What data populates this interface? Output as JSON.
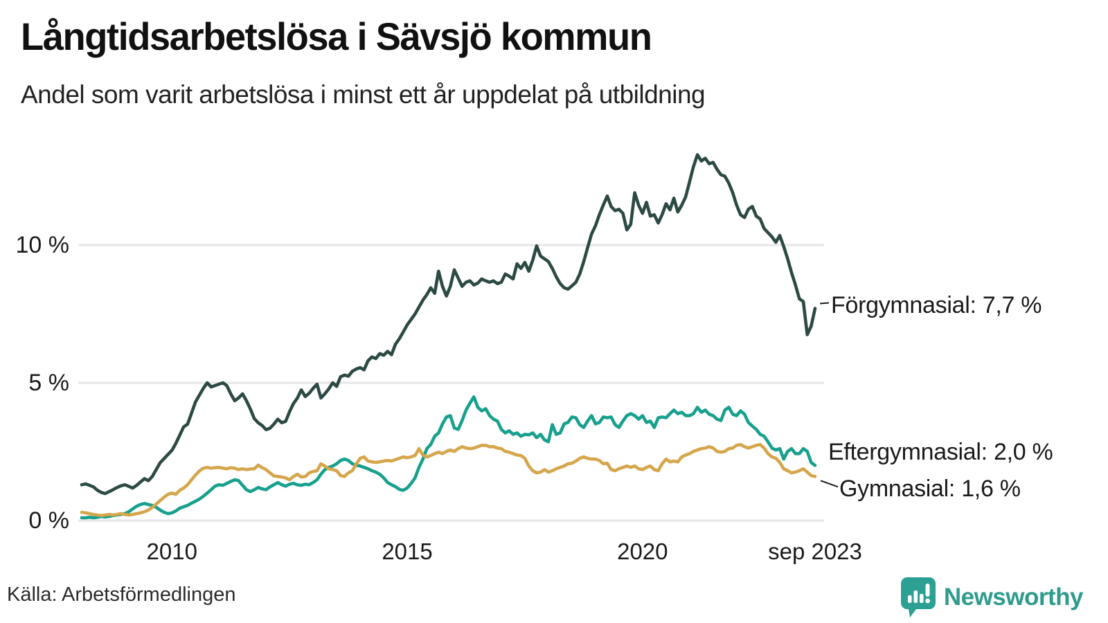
{
  "title": "Långtidsarbetslösa i Sävsjö kommun",
  "subtitle": "Andel som varit arbetslösa i minst ett år uppdelat på utbildning",
  "source": "Källa: Arbetsförmedlingen",
  "brand": {
    "name": "Newsworthy",
    "color": "#2E9B8D",
    "icon_color": "#2BA093",
    "icon": "speech-bubble-bar-chart-exclamation"
  },
  "colors": {
    "grid": "#E6E6E8",
    "text": "#1a1a1a"
  },
  "chart_data": {
    "type": "line",
    "title": "Långtidsarbetslösa i Sävsjö kommun",
    "subtitle": "Andel som varit arbetslösa i minst ett år uppdelat på utbildning",
    "xlabel": "",
    "ylabel": "",
    "x_start": "2008-02",
    "x_end": "2023-09",
    "x_interval": "monthly",
    "ylim": [
      0,
      13.8
    ],
    "grid": "horizontal",
    "legend_position": "end-of-line-labels",
    "y_ticks": [
      {
        "value": 0,
        "label": "0 %"
      },
      {
        "value": 5,
        "label": "5 %"
      },
      {
        "value": 10,
        "label": "10 %"
      }
    ],
    "x_ticks": [
      {
        "month_index": 23,
        "label": "2010"
      },
      {
        "month_index": 83,
        "label": "2015"
      },
      {
        "month_index": 143,
        "label": "2020"
      },
      {
        "month_index": 187,
        "label": "sep 2023"
      }
    ],
    "series": [
      {
        "name": "Förgymnasial",
        "end_label": "Förgymnasial: 7,7 %",
        "end_value_label": "7,7 %",
        "color": "#2C4A44",
        "values": [
          1.3,
          1.33,
          1.28,
          1.22,
          1.1,
          1.02,
          0.98,
          1.05,
          1.12,
          1.2,
          1.26,
          1.3,
          1.24,
          1.18,
          1.28,
          1.4,
          1.52,
          1.45,
          1.6,
          1.85,
          2.1,
          2.25,
          2.4,
          2.55,
          2.8,
          3.1,
          3.4,
          3.5,
          3.9,
          4.3,
          4.55,
          4.8,
          5.0,
          4.85,
          4.9,
          4.95,
          5.0,
          4.9,
          4.6,
          4.35,
          4.45,
          4.6,
          4.35,
          4.05,
          3.7,
          3.55,
          3.45,
          3.3,
          3.35,
          3.5,
          3.68,
          3.55,
          3.6,
          3.95,
          4.25,
          4.45,
          4.74,
          4.5,
          4.62,
          4.8,
          4.95,
          4.45,
          4.6,
          4.78,
          5.0,
          4.87,
          5.22,
          5.28,
          5.24,
          5.42,
          5.5,
          5.55,
          5.47,
          5.8,
          5.94,
          5.88,
          6.06,
          6.0,
          6.14,
          6.02,
          6.4,
          6.6,
          6.85,
          7.1,
          7.3,
          7.5,
          7.75,
          8.0,
          8.2,
          8.45,
          8.25,
          9.05,
          8.5,
          8.15,
          8.5,
          9.1,
          8.8,
          8.5,
          8.65,
          8.7,
          8.55,
          8.62,
          8.77,
          8.7,
          8.65,
          8.7,
          8.6,
          8.65,
          8.95,
          8.87,
          8.77,
          9.32,
          9.15,
          9.37,
          9.05,
          9.45,
          9.97,
          9.6,
          9.5,
          9.4,
          9.15,
          8.85,
          8.6,
          8.45,
          8.4,
          8.52,
          8.65,
          8.95,
          9.4,
          9.9,
          10.4,
          10.7,
          11.1,
          11.45,
          11.78,
          11.4,
          11.25,
          11.3,
          11.15,
          10.55,
          10.75,
          11.9,
          11.45,
          11.15,
          11.55,
          11.05,
          11.1,
          10.8,
          11.1,
          11.5,
          11.28,
          11.7,
          11.2,
          11.45,
          11.75,
          12.3,
          12.85,
          13.28,
          13.05,
          13.15,
          12.95,
          13.0,
          12.75,
          12.55,
          12.5,
          12.25,
          11.9,
          11.45,
          11.1,
          11.0,
          11.3,
          11.4,
          11.05,
          10.95,
          10.6,
          10.45,
          10.3,
          10.1,
          10.35,
          9.95,
          9.5,
          9.0,
          8.55,
          8.05,
          7.95,
          6.75,
          7.05,
          7.7
        ]
      },
      {
        "name": "Eftergymnasial",
        "end_label": "Eftergymnasial: 2,0 %",
        "end_value_label": "2,0 %",
        "color": "#17A08D",
        "values": [
          0.1,
          0.1,
          0.12,
          0.1,
          0.12,
          0.15,
          0.13,
          0.15,
          0.18,
          0.2,
          0.22,
          0.25,
          0.32,
          0.42,
          0.52,
          0.58,
          0.62,
          0.58,
          0.55,
          0.48,
          0.38,
          0.3,
          0.25,
          0.28,
          0.35,
          0.45,
          0.5,
          0.55,
          0.63,
          0.7,
          0.78,
          0.88,
          1.0,
          1.12,
          1.25,
          1.3,
          1.28,
          1.35,
          1.42,
          1.48,
          1.45,
          1.28,
          1.12,
          1.05,
          1.12,
          1.2,
          1.15,
          1.12,
          1.22,
          1.3,
          1.38,
          1.3,
          1.25,
          1.32,
          1.35,
          1.3,
          1.28,
          1.32,
          1.3,
          1.38,
          1.48,
          1.68,
          1.85,
          1.93,
          1.98,
          2.06,
          2.18,
          2.23,
          2.18,
          2.06,
          2.01,
          1.98,
          1.93,
          1.88,
          1.81,
          1.76,
          1.68,
          1.55,
          1.38,
          1.3,
          1.23,
          1.13,
          1.1,
          1.18,
          1.35,
          1.55,
          1.93,
          2.23,
          2.61,
          2.76,
          3.06,
          3.18,
          3.51,
          3.76,
          3.81,
          3.36,
          3.31,
          3.63,
          4.01,
          4.26,
          4.49,
          4.11,
          3.98,
          4.06,
          3.81,
          3.68,
          3.61,
          3.31,
          3.18,
          3.26,
          3.13,
          3.18,
          3.06,
          3.13,
          3.11,
          3.18,
          3.01,
          3.13,
          2.93,
          2.86,
          3.48,
          3.13,
          3.18,
          3.51,
          3.56,
          3.76,
          3.73,
          3.48,
          3.38,
          3.61,
          3.81,
          3.51,
          3.56,
          3.76,
          3.73,
          3.76,
          3.48,
          3.38,
          3.61,
          3.81,
          3.88,
          3.81,
          3.68,
          3.81,
          3.56,
          3.61,
          3.38,
          3.73,
          3.76,
          3.73,
          3.88,
          4.01,
          3.88,
          3.93,
          3.81,
          3.81,
          3.88,
          4.11,
          3.93,
          4.01,
          3.86,
          3.81,
          3.68,
          3.63,
          4.01,
          4.11,
          3.86,
          3.81,
          3.98,
          3.86,
          3.56,
          3.43,
          3.31,
          3.13,
          3.06,
          2.86,
          2.63,
          2.56,
          2.61,
          2.23,
          2.51,
          2.61,
          2.43,
          2.43,
          2.61,
          2.51,
          2.11,
          2.0
        ]
      },
      {
        "name": "Gymnasial",
        "end_label": "Gymnasial: 1,6 %",
        "end_value_label": "1,6 %",
        "color": "#D5A64B",
        "values": [
          0.3,
          0.28,
          0.25,
          0.22,
          0.2,
          0.18,
          0.2,
          0.22,
          0.2,
          0.22,
          0.25,
          0.22,
          0.2,
          0.22,
          0.25,
          0.28,
          0.32,
          0.38,
          0.48,
          0.6,
          0.72,
          0.85,
          0.95,
          1.0,
          0.95,
          1.1,
          1.18,
          1.3,
          1.48,
          1.65,
          1.8,
          1.9,
          1.93,
          1.9,
          1.92,
          1.93,
          1.9,
          1.88,
          1.92,
          1.9,
          1.85,
          1.88,
          1.85,
          1.87,
          1.88,
          2.01,
          1.92,
          1.85,
          1.73,
          1.62,
          1.6,
          1.58,
          1.55,
          1.48,
          1.6,
          1.68,
          1.58,
          1.6,
          1.73,
          1.78,
          1.81,
          2.06,
          1.98,
          1.88,
          1.85,
          1.81,
          1.63,
          1.6,
          1.73,
          1.81,
          2.05,
          2.26,
          2.31,
          2.16,
          2.13,
          2.11,
          2.13,
          2.16,
          2.18,
          2.16,
          2.21,
          2.26,
          2.31,
          2.28,
          2.31,
          2.36,
          2.61,
          2.38,
          2.31,
          2.36,
          2.43,
          2.48,
          2.43,
          2.51,
          2.56,
          2.51,
          2.61,
          2.68,
          2.63,
          2.61,
          2.63,
          2.68,
          2.73,
          2.73,
          2.68,
          2.68,
          2.63,
          2.61,
          2.51,
          2.48,
          2.43,
          2.38,
          2.36,
          2.26,
          1.98,
          1.81,
          1.73,
          1.76,
          1.85,
          1.76,
          1.81,
          1.88,
          1.93,
          1.98,
          2.06,
          2.08,
          2.16,
          2.26,
          2.31,
          2.26,
          2.23,
          2.23,
          2.18,
          2.06,
          2.08,
          1.85,
          1.81,
          1.88,
          1.93,
          1.98,
          1.93,
          1.98,
          1.88,
          1.85,
          1.93,
          1.98,
          1.85,
          1.81,
          2.06,
          2.23,
          2.13,
          2.16,
          2.13,
          2.31,
          2.38,
          2.43,
          2.51,
          2.56,
          2.61,
          2.63,
          2.68,
          2.63,
          2.51,
          2.48,
          2.51,
          2.61,
          2.63,
          2.73,
          2.76,
          2.68,
          2.63,
          2.68,
          2.73,
          2.76,
          2.63,
          2.43,
          2.31,
          2.26,
          2.11,
          1.88,
          1.81,
          1.73,
          1.76,
          1.81,
          1.88,
          1.76,
          1.63,
          1.6
        ]
      }
    ]
  }
}
